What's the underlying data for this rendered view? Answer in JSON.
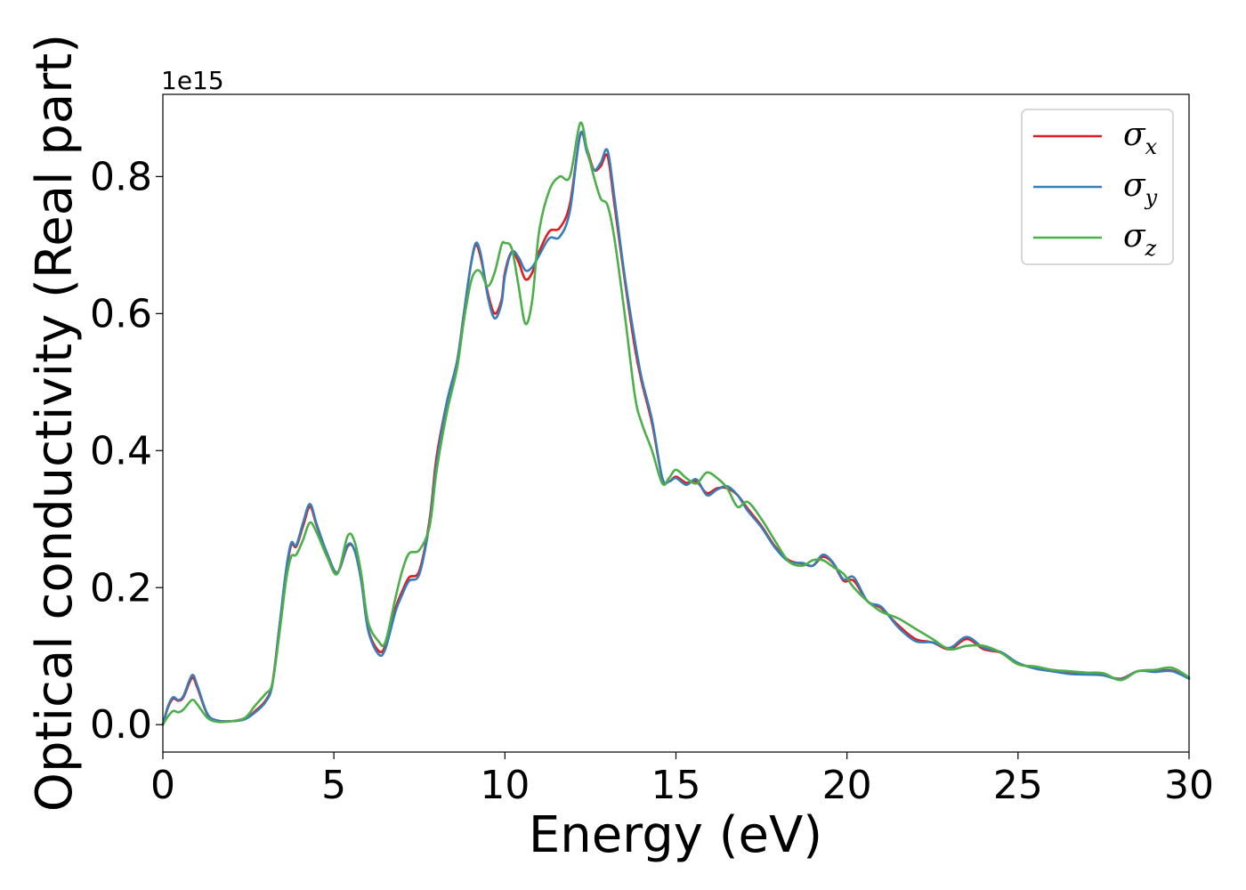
{
  "chart_data": {
    "type": "line",
    "xlabel": "Energy (eV)",
    "ylabel": "Optical conductivity (Real part)",
    "y_offset_label": "1e15",
    "xlim": [
      0,
      30
    ],
    "ylim": [
      -0.04,
      0.92
    ],
    "x_ticks": [
      0,
      5,
      10,
      15,
      20,
      25,
      30
    ],
    "x_tick_labels": [
      "0",
      "5",
      "10",
      "15",
      "20",
      "25",
      "30"
    ],
    "y_ticks": [
      0.0,
      0.2,
      0.4,
      0.6,
      0.8
    ],
    "y_tick_labels": [
      "0.0",
      "0.2",
      "0.4",
      "0.6",
      "0.8"
    ],
    "grid": false,
    "legend_position": "top-right",
    "series": [
      {
        "name": "σx",
        "symbol": "σ",
        "subscript": "x",
        "color": "#e41a1c",
        "points": [
          [
            0,
            0.0
          ],
          [
            0.15,
            0.025
          ],
          [
            0.3,
            0.038
          ],
          [
            0.45,
            0.035
          ],
          [
            0.6,
            0.04
          ],
          [
            0.85,
            0.068
          ],
          [
            1.0,
            0.055
          ],
          [
            1.3,
            0.015
          ],
          [
            1.6,
            0.006
          ],
          [
            2.0,
            0.005
          ],
          [
            2.4,
            0.008
          ],
          [
            2.7,
            0.02
          ],
          [
            3.0,
            0.035
          ],
          [
            3.2,
            0.06
          ],
          [
            3.4,
            0.14
          ],
          [
            3.6,
            0.22
          ],
          [
            3.75,
            0.262
          ],
          [
            3.9,
            0.26
          ],
          [
            4.1,
            0.29
          ],
          [
            4.3,
            0.318
          ],
          [
            4.5,
            0.29
          ],
          [
            4.8,
            0.25
          ],
          [
            5.1,
            0.222
          ],
          [
            5.4,
            0.26
          ],
          [
            5.6,
            0.255
          ],
          [
            5.8,
            0.21
          ],
          [
            6.0,
            0.14
          ],
          [
            6.3,
            0.108
          ],
          [
            6.5,
            0.115
          ],
          [
            6.8,
            0.17
          ],
          [
            7.0,
            0.195
          ],
          [
            7.2,
            0.215
          ],
          [
            7.5,
            0.225
          ],
          [
            7.8,
            0.3
          ],
          [
            8.0,
            0.39
          ],
          [
            8.3,
            0.47
          ],
          [
            8.6,
            0.53
          ],
          [
            8.8,
            0.6
          ],
          [
            9.0,
            0.67
          ],
          [
            9.15,
            0.7
          ],
          [
            9.3,
            0.68
          ],
          [
            9.5,
            0.63
          ],
          [
            9.7,
            0.6
          ],
          [
            9.9,
            0.62
          ],
          [
            10.0,
            0.66
          ],
          [
            10.2,
            0.69
          ],
          [
            10.4,
            0.675
          ],
          [
            10.6,
            0.65
          ],
          [
            10.8,
            0.66
          ],
          [
            11.0,
            0.69
          ],
          [
            11.3,
            0.72
          ],
          [
            11.6,
            0.725
          ],
          [
            11.9,
            0.76
          ],
          [
            12.2,
            0.86
          ],
          [
            12.4,
            0.84
          ],
          [
            12.6,
            0.81
          ],
          [
            12.8,
            0.815
          ],
          [
            13.0,
            0.83
          ],
          [
            13.2,
            0.76
          ],
          [
            13.5,
            0.65
          ],
          [
            13.8,
            0.55
          ],
          [
            14.0,
            0.5
          ],
          [
            14.3,
            0.44
          ],
          [
            14.6,
            0.36
          ],
          [
            14.8,
            0.355
          ],
          [
            15.0,
            0.362
          ],
          [
            15.3,
            0.353
          ],
          [
            15.6,
            0.355
          ],
          [
            15.9,
            0.338
          ],
          [
            16.2,
            0.345
          ],
          [
            16.5,
            0.345
          ],
          [
            16.8,
            0.335
          ],
          [
            17.1,
            0.315
          ],
          [
            17.5,
            0.29
          ],
          [
            17.9,
            0.26
          ],
          [
            18.3,
            0.24
          ],
          [
            18.7,
            0.235
          ],
          [
            19.0,
            0.232
          ],
          [
            19.3,
            0.245
          ],
          [
            19.6,
            0.235
          ],
          [
            19.9,
            0.21
          ],
          [
            20.2,
            0.21
          ],
          [
            20.6,
            0.18
          ],
          [
            21.0,
            0.17
          ],
          [
            21.5,
            0.145
          ],
          [
            22.0,
            0.125
          ],
          [
            22.5,
            0.12
          ],
          [
            23.0,
            0.11
          ],
          [
            23.5,
            0.125
          ],
          [
            24.0,
            0.11
          ],
          [
            24.5,
            0.105
          ],
          [
            25.0,
            0.09
          ],
          [
            25.5,
            0.082
          ],
          [
            26.0,
            0.078
          ],
          [
            26.5,
            0.075
          ],
          [
            27.0,
            0.074
          ],
          [
            27.5,
            0.072
          ],
          [
            28.0,
            0.067
          ],
          [
            28.5,
            0.078
          ],
          [
            29.0,
            0.078
          ],
          [
            29.5,
            0.079
          ],
          [
            30.0,
            0.068
          ]
        ]
      },
      {
        "name": "σy",
        "symbol": "σ",
        "subscript": "y",
        "color": "#377eb8",
        "points": [
          [
            0,
            0.0
          ],
          [
            0.15,
            0.027
          ],
          [
            0.3,
            0.04
          ],
          [
            0.45,
            0.036
          ],
          [
            0.6,
            0.042
          ],
          [
            0.85,
            0.072
          ],
          [
            1.0,
            0.058
          ],
          [
            1.3,
            0.016
          ],
          [
            1.6,
            0.006
          ],
          [
            2.0,
            0.005
          ],
          [
            2.4,
            0.008
          ],
          [
            2.7,
            0.018
          ],
          [
            3.0,
            0.033
          ],
          [
            3.2,
            0.058
          ],
          [
            3.4,
            0.14
          ],
          [
            3.6,
            0.225
          ],
          [
            3.75,
            0.265
          ],
          [
            3.9,
            0.262
          ],
          [
            4.1,
            0.295
          ],
          [
            4.3,
            0.322
          ],
          [
            4.5,
            0.292
          ],
          [
            4.8,
            0.25
          ],
          [
            5.1,
            0.222
          ],
          [
            5.4,
            0.262
          ],
          [
            5.6,
            0.255
          ],
          [
            5.8,
            0.21
          ],
          [
            6.0,
            0.138
          ],
          [
            6.3,
            0.103
          ],
          [
            6.5,
            0.11
          ],
          [
            6.8,
            0.165
          ],
          [
            7.0,
            0.19
          ],
          [
            7.2,
            0.21
          ],
          [
            7.5,
            0.22
          ],
          [
            7.8,
            0.295
          ],
          [
            8.0,
            0.38
          ],
          [
            8.3,
            0.47
          ],
          [
            8.6,
            0.53
          ],
          [
            8.8,
            0.6
          ],
          [
            9.0,
            0.67
          ],
          [
            9.15,
            0.703
          ],
          [
            9.3,
            0.685
          ],
          [
            9.5,
            0.625
          ],
          [
            9.7,
            0.593
          ],
          [
            9.9,
            0.615
          ],
          [
            10.0,
            0.655
          ],
          [
            10.2,
            0.69
          ],
          [
            10.4,
            0.682
          ],
          [
            10.6,
            0.663
          ],
          [
            10.8,
            0.668
          ],
          [
            11.0,
            0.685
          ],
          [
            11.3,
            0.71
          ],
          [
            11.6,
            0.712
          ],
          [
            11.9,
            0.75
          ],
          [
            12.2,
            0.862
          ],
          [
            12.4,
            0.835
          ],
          [
            12.6,
            0.81
          ],
          [
            12.8,
            0.82
          ],
          [
            13.0,
            0.838
          ],
          [
            13.2,
            0.77
          ],
          [
            13.5,
            0.655
          ],
          [
            13.8,
            0.56
          ],
          [
            14.0,
            0.505
          ],
          [
            14.3,
            0.445
          ],
          [
            14.6,
            0.36
          ],
          [
            14.8,
            0.355
          ],
          [
            15.0,
            0.36
          ],
          [
            15.3,
            0.35
          ],
          [
            15.6,
            0.358
          ],
          [
            15.9,
            0.335
          ],
          [
            16.2,
            0.343
          ],
          [
            16.5,
            0.348
          ],
          [
            16.8,
            0.335
          ],
          [
            17.1,
            0.312
          ],
          [
            17.5,
            0.288
          ],
          [
            17.9,
            0.258
          ],
          [
            18.3,
            0.238
          ],
          [
            18.7,
            0.236
          ],
          [
            19.0,
            0.232
          ],
          [
            19.3,
            0.248
          ],
          [
            19.6,
            0.236
          ],
          [
            19.9,
            0.212
          ],
          [
            20.2,
            0.215
          ],
          [
            20.6,
            0.18
          ],
          [
            21.0,
            0.172
          ],
          [
            21.5,
            0.142
          ],
          [
            22.0,
            0.122
          ],
          [
            22.5,
            0.12
          ],
          [
            23.0,
            0.112
          ],
          [
            23.5,
            0.128
          ],
          [
            24.0,
            0.112
          ],
          [
            24.5,
            0.106
          ],
          [
            25.0,
            0.09
          ],
          [
            25.5,
            0.082
          ],
          [
            26.0,
            0.078
          ],
          [
            26.5,
            0.074
          ],
          [
            27.0,
            0.073
          ],
          [
            27.5,
            0.072
          ],
          [
            28.0,
            0.066
          ],
          [
            28.5,
            0.078
          ],
          [
            29.0,
            0.077
          ],
          [
            29.5,
            0.078
          ],
          [
            30.0,
            0.067
          ]
        ]
      },
      {
        "name": "σz",
        "symbol": "σ",
        "subscript": "z",
        "color": "#4daf4a",
        "points": [
          [
            0,
            0.0
          ],
          [
            0.15,
            0.012
          ],
          [
            0.3,
            0.02
          ],
          [
            0.45,
            0.018
          ],
          [
            0.6,
            0.022
          ],
          [
            0.85,
            0.036
          ],
          [
            1.0,
            0.03
          ],
          [
            1.3,
            0.01
          ],
          [
            1.6,
            0.004
          ],
          [
            2.0,
            0.005
          ],
          [
            2.4,
            0.01
          ],
          [
            2.7,
            0.028
          ],
          [
            3.0,
            0.045
          ],
          [
            3.2,
            0.06
          ],
          [
            3.4,
            0.13
          ],
          [
            3.6,
            0.21
          ],
          [
            3.75,
            0.245
          ],
          [
            3.9,
            0.248
          ],
          [
            4.1,
            0.27
          ],
          [
            4.3,
            0.295
          ],
          [
            4.5,
            0.28
          ],
          [
            4.8,
            0.245
          ],
          [
            5.1,
            0.22
          ],
          [
            5.4,
            0.275
          ],
          [
            5.6,
            0.268
          ],
          [
            5.8,
            0.22
          ],
          [
            6.0,
            0.15
          ],
          [
            6.3,
            0.122
          ],
          [
            6.5,
            0.12
          ],
          [
            6.8,
            0.185
          ],
          [
            7.0,
            0.225
          ],
          [
            7.2,
            0.25
          ],
          [
            7.5,
            0.255
          ],
          [
            7.8,
            0.29
          ],
          [
            8.0,
            0.37
          ],
          [
            8.3,
            0.455
          ],
          [
            8.6,
            0.52
          ],
          [
            8.8,
            0.59
          ],
          [
            9.0,
            0.645
          ],
          [
            9.15,
            0.662
          ],
          [
            9.3,
            0.66
          ],
          [
            9.5,
            0.64
          ],
          [
            9.7,
            0.66
          ],
          [
            9.9,
            0.7
          ],
          [
            10.0,
            0.703
          ],
          [
            10.2,
            0.695
          ],
          [
            10.4,
            0.64
          ],
          [
            10.6,
            0.585
          ],
          [
            10.8,
            0.62
          ],
          [
            11.0,
            0.72
          ],
          [
            11.3,
            0.78
          ],
          [
            11.6,
            0.8
          ],
          [
            11.9,
            0.8
          ],
          [
            12.2,
            0.878
          ],
          [
            12.4,
            0.84
          ],
          [
            12.6,
            0.8
          ],
          [
            12.8,
            0.768
          ],
          [
            13.0,
            0.758
          ],
          [
            13.2,
            0.71
          ],
          [
            13.5,
            0.6
          ],
          [
            13.8,
            0.48
          ],
          [
            14.0,
            0.44
          ],
          [
            14.3,
            0.4
          ],
          [
            14.6,
            0.352
          ],
          [
            14.8,
            0.36
          ],
          [
            15.0,
            0.372
          ],
          [
            15.3,
            0.36
          ],
          [
            15.6,
            0.352
          ],
          [
            15.9,
            0.368
          ],
          [
            16.2,
            0.36
          ],
          [
            16.5,
            0.345
          ],
          [
            16.8,
            0.318
          ],
          [
            17.1,
            0.325
          ],
          [
            17.5,
            0.3
          ],
          [
            17.9,
            0.268
          ],
          [
            18.3,
            0.238
          ],
          [
            18.7,
            0.232
          ],
          [
            19.0,
            0.24
          ],
          [
            19.3,
            0.24
          ],
          [
            19.6,
            0.23
          ],
          [
            19.9,
            0.22
          ],
          [
            20.2,
            0.2
          ],
          [
            20.6,
            0.18
          ],
          [
            21.0,
            0.165
          ],
          [
            21.5,
            0.155
          ],
          [
            22.0,
            0.14
          ],
          [
            22.5,
            0.125
          ],
          [
            23.0,
            0.11
          ],
          [
            23.5,
            0.115
          ],
          [
            24.0,
            0.115
          ],
          [
            24.5,
            0.105
          ],
          [
            25.0,
            0.088
          ],
          [
            25.5,
            0.085
          ],
          [
            26.0,
            0.08
          ],
          [
            26.5,
            0.078
          ],
          [
            27.0,
            0.076
          ],
          [
            27.5,
            0.075
          ],
          [
            28.0,
            0.065
          ],
          [
            28.5,
            0.078
          ],
          [
            29.0,
            0.08
          ],
          [
            29.5,
            0.083
          ],
          [
            30.0,
            0.069
          ]
        ]
      }
    ]
  }
}
